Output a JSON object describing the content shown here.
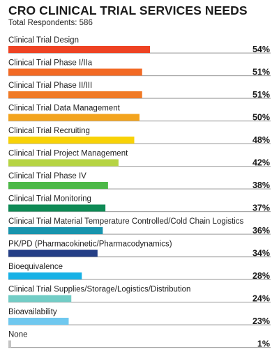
{
  "chart_data": {
    "type": "bar",
    "orientation": "horizontal",
    "title": "CRO CLINICAL TRIAL SERVICES NEEDS",
    "subtitle": "Total Respondents: 586",
    "xlim": [
      0,
      100
    ],
    "value_suffix": "%",
    "categories": [
      "Clinical Trial Design",
      "Clinical Trial Phase I/IIa",
      "Clinical Trial Phase II/III",
      "Clinical Trial Data Management",
      "Clinical Trial Recruiting",
      "Clinical Trial Project Management",
      "Clinical Trial Phase IV",
      "Clinical Trial Monitoring",
      "Clinical Trial Material Temperature Controlled/Cold Chain Logistics",
      "PK/PD (Pharmacokinetic/Pharmacodynamics)",
      "Bioequivalence",
      "Clinical Trial Supplies/Storage/Logistics/Distribution",
      "Bioavailability",
      "None"
    ],
    "values": [
      54,
      51,
      51,
      50,
      48,
      42,
      38,
      37,
      36,
      34,
      28,
      24,
      23,
      1
    ],
    "colors": [
      "#ee4323",
      "#f26a25",
      "#f07a26",
      "#f3a41e",
      "#f8d207",
      "#b6d443",
      "#4db848",
      "#0e8a55",
      "#1894ad",
      "#253f86",
      "#17b1e6",
      "#72cdc6",
      "#6fc8ef",
      "#c4c4c4"
    ],
    "baseline_color": "#a8a8a8"
  }
}
